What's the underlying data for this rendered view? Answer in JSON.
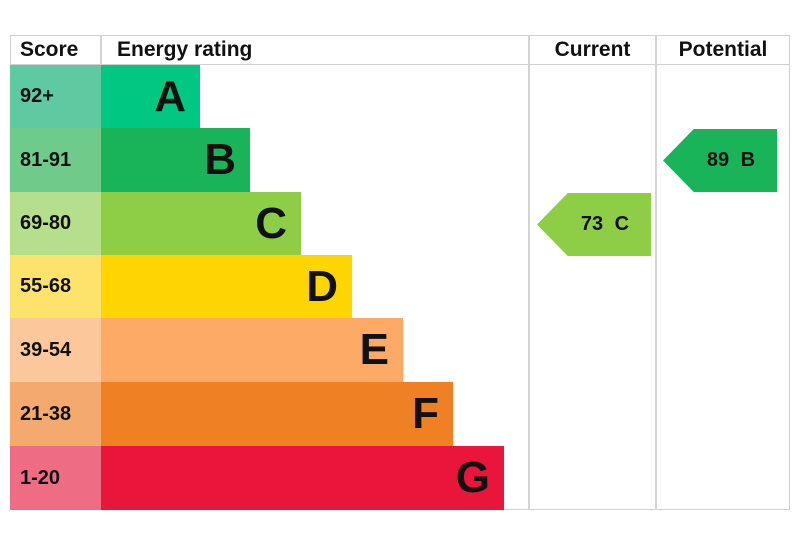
{
  "header": {
    "score": "Score",
    "energy_rating": "Energy rating",
    "current": "Current",
    "potential": "Potential"
  },
  "bands": [
    {
      "score": "92+",
      "letter": "A",
      "bar_color": "#00c781",
      "score_color": "#5fc9a1"
    },
    {
      "score": "81-91",
      "letter": "B",
      "bar_color": "#19b459",
      "score_color": "#6fcb8a"
    },
    {
      "score": "69-80",
      "letter": "C",
      "bar_color": "#8dce46",
      "score_color": "#b5df8d"
    },
    {
      "score": "55-68",
      "letter": "D",
      "bar_color": "#ffd500",
      "score_color": "#fde36b"
    },
    {
      "score": "39-54",
      "letter": "E",
      "bar_color": "#fcaa65",
      "score_color": "#fdc79c"
    },
    {
      "score": "21-38",
      "letter": "F",
      "bar_color": "#ef8023",
      "score_color": "#f4aa6e"
    },
    {
      "score": "1-20",
      "letter": "G",
      "bar_color": "#e9153b",
      "score_color": "#ef6c85"
    }
  ],
  "current": {
    "label": "73 C",
    "value": 73,
    "band": "C",
    "color": "#8dce46"
  },
  "potential": {
    "label": "89 B",
    "value": 89,
    "band": "B",
    "color": "#19b459"
  },
  "chart_data": {
    "type": "bar",
    "title": "Energy rating",
    "categories": [
      "A",
      "B",
      "C",
      "D",
      "E",
      "F",
      "G"
    ],
    "score_ranges": [
      "92+",
      "81-91",
      "69-80",
      "55-68",
      "39-54",
      "21-38",
      "1-20"
    ],
    "colors": [
      "#00c781",
      "#19b459",
      "#8dce46",
      "#ffd500",
      "#fcaa65",
      "#ef8023",
      "#e9153b"
    ],
    "columns": [
      "Score",
      "Energy rating",
      "Current",
      "Potential"
    ],
    "current": {
      "score": 73,
      "band": "C"
    },
    "potential": {
      "score": 89,
      "band": "B"
    }
  }
}
